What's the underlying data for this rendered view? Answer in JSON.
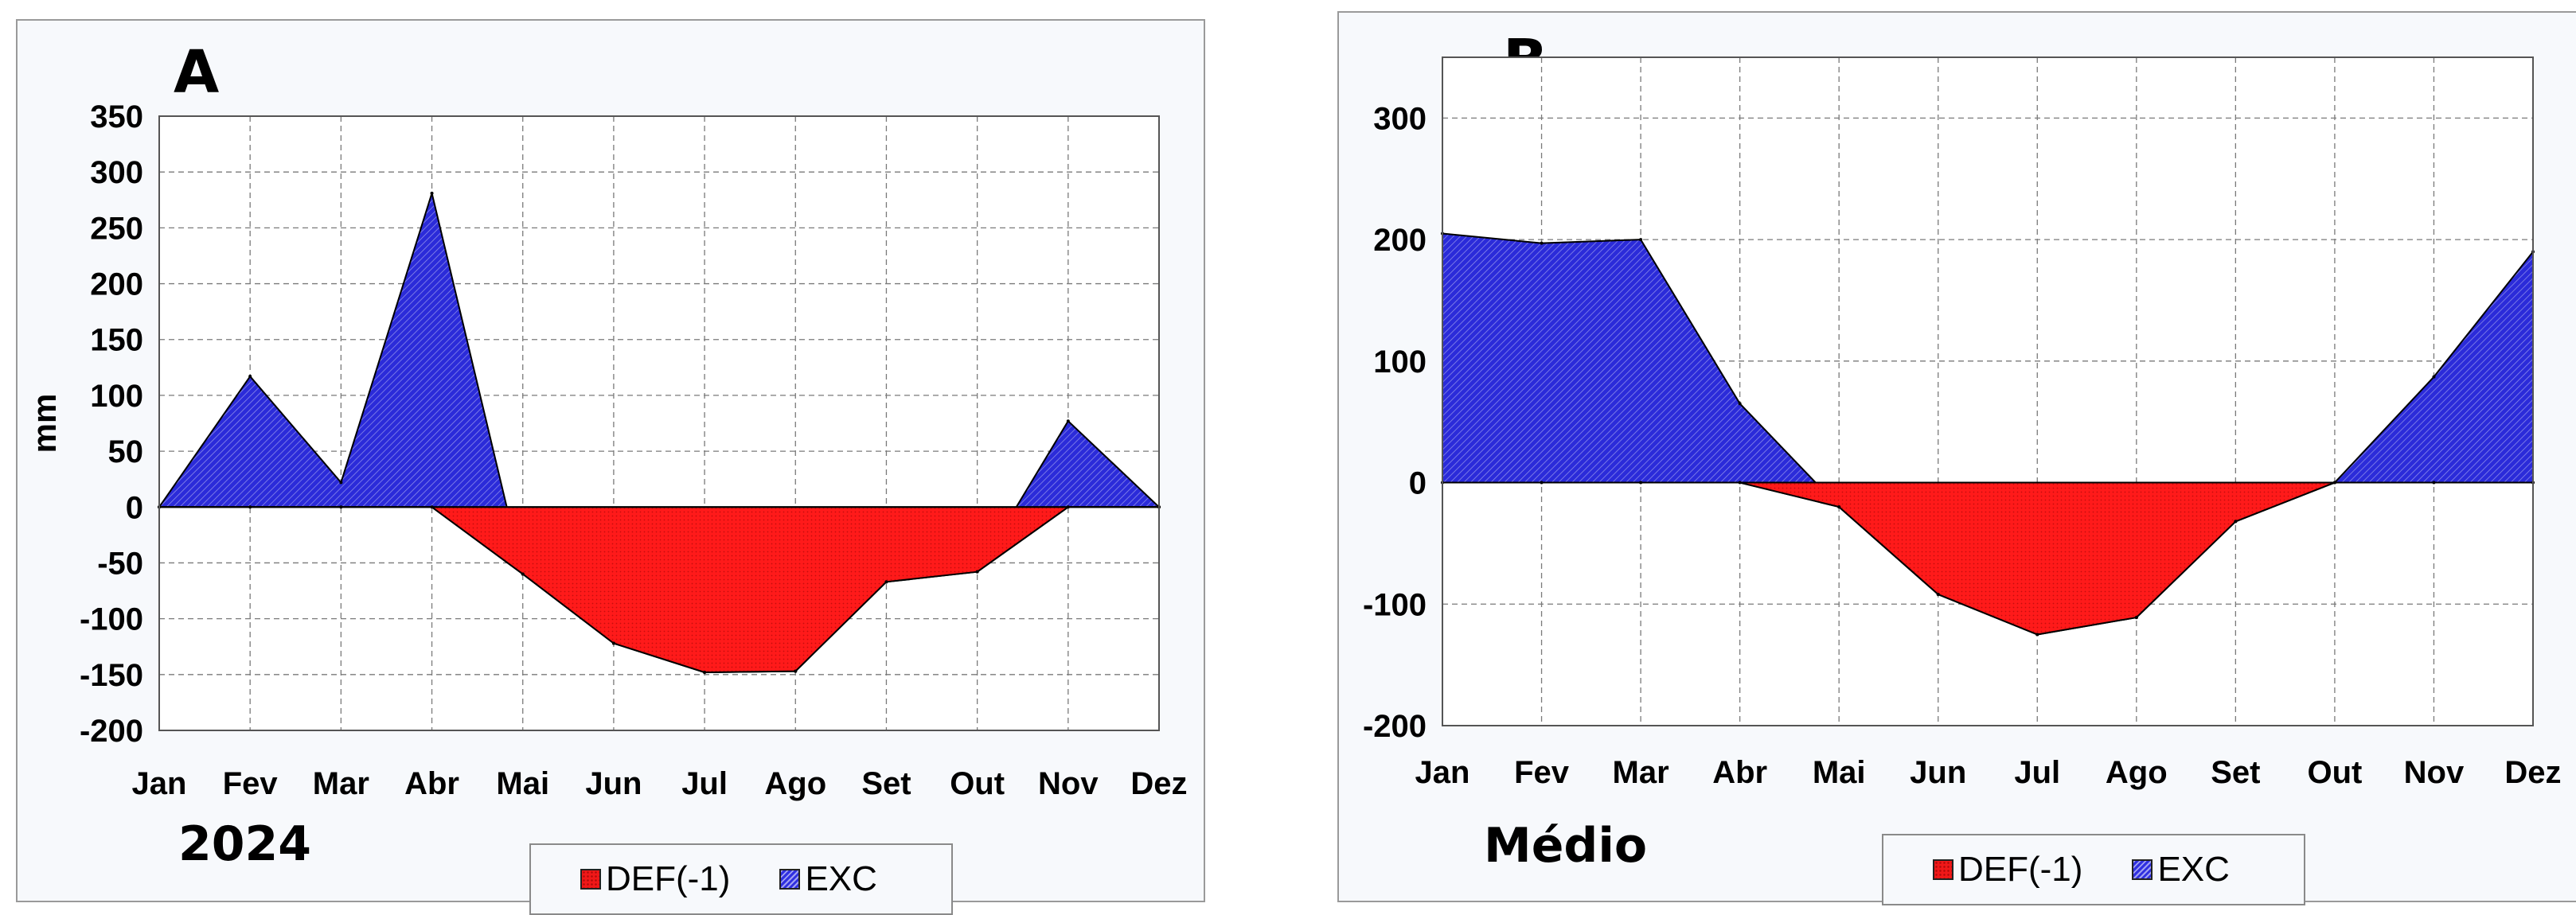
{
  "legend": {
    "def_label": "DEF(-1)",
    "exc_label": "EXC"
  },
  "colors": {
    "def": "#ff1a1a",
    "exc": "#2b2bd9"
  },
  "chart_data": [
    {
      "type": "area",
      "panel_letter": "A",
      "caption": "2024",
      "ylabel": "mm",
      "ylim": [
        -200,
        350
      ],
      "yticks": [
        350,
        300,
        250,
        200,
        150,
        100,
        50,
        0,
        -50,
        -100,
        -150,
        -200
      ],
      "categories": [
        "Jan",
        "Fev",
        "Mar",
        "Abr",
        "Mai",
        "Jun",
        "Jul",
        "Ago",
        "Set",
        "Out",
        "Nov",
        "Dez"
      ],
      "grid": true,
      "legend_position": "bottom-right",
      "series": [
        {
          "name": "DEF(-1)",
          "values": [
            0,
            0,
            0,
            0,
            -60,
            -122,
            -148,
            -147,
            -67,
            -58,
            0,
            0
          ]
        },
        {
          "name": "EXC",
          "values": [
            0,
            117,
            22,
            281,
            -60,
            -122,
            -148,
            -147,
            -67,
            -58,
            77,
            0
          ]
        }
      ]
    },
    {
      "type": "area",
      "panel_letter": "B",
      "caption": "Médio",
      "ylabel": "mm",
      "ylim": [
        -200,
        350
      ],
      "yticks": [
        300,
        200,
        100,
        0,
        -100,
        -200
      ],
      "categories": [
        "Jan",
        "Fev",
        "Mar",
        "Abr",
        "Mai",
        "Jun",
        "Jul",
        "Ago",
        "Set",
        "Out",
        "Nov",
        "Dez"
      ],
      "grid": true,
      "legend_position": "bottom-right",
      "series": [
        {
          "name": "DEF(-1)",
          "values": [
            0,
            0,
            0,
            0,
            -20,
            -92,
            -125,
            -111,
            -32,
            0,
            0,
            0
          ]
        },
        {
          "name": "EXC",
          "values": [
            205,
            197,
            200,
            65,
            -20,
            -92,
            -125,
            -111,
            -32,
            0,
            87,
            190
          ]
        }
      ]
    }
  ]
}
